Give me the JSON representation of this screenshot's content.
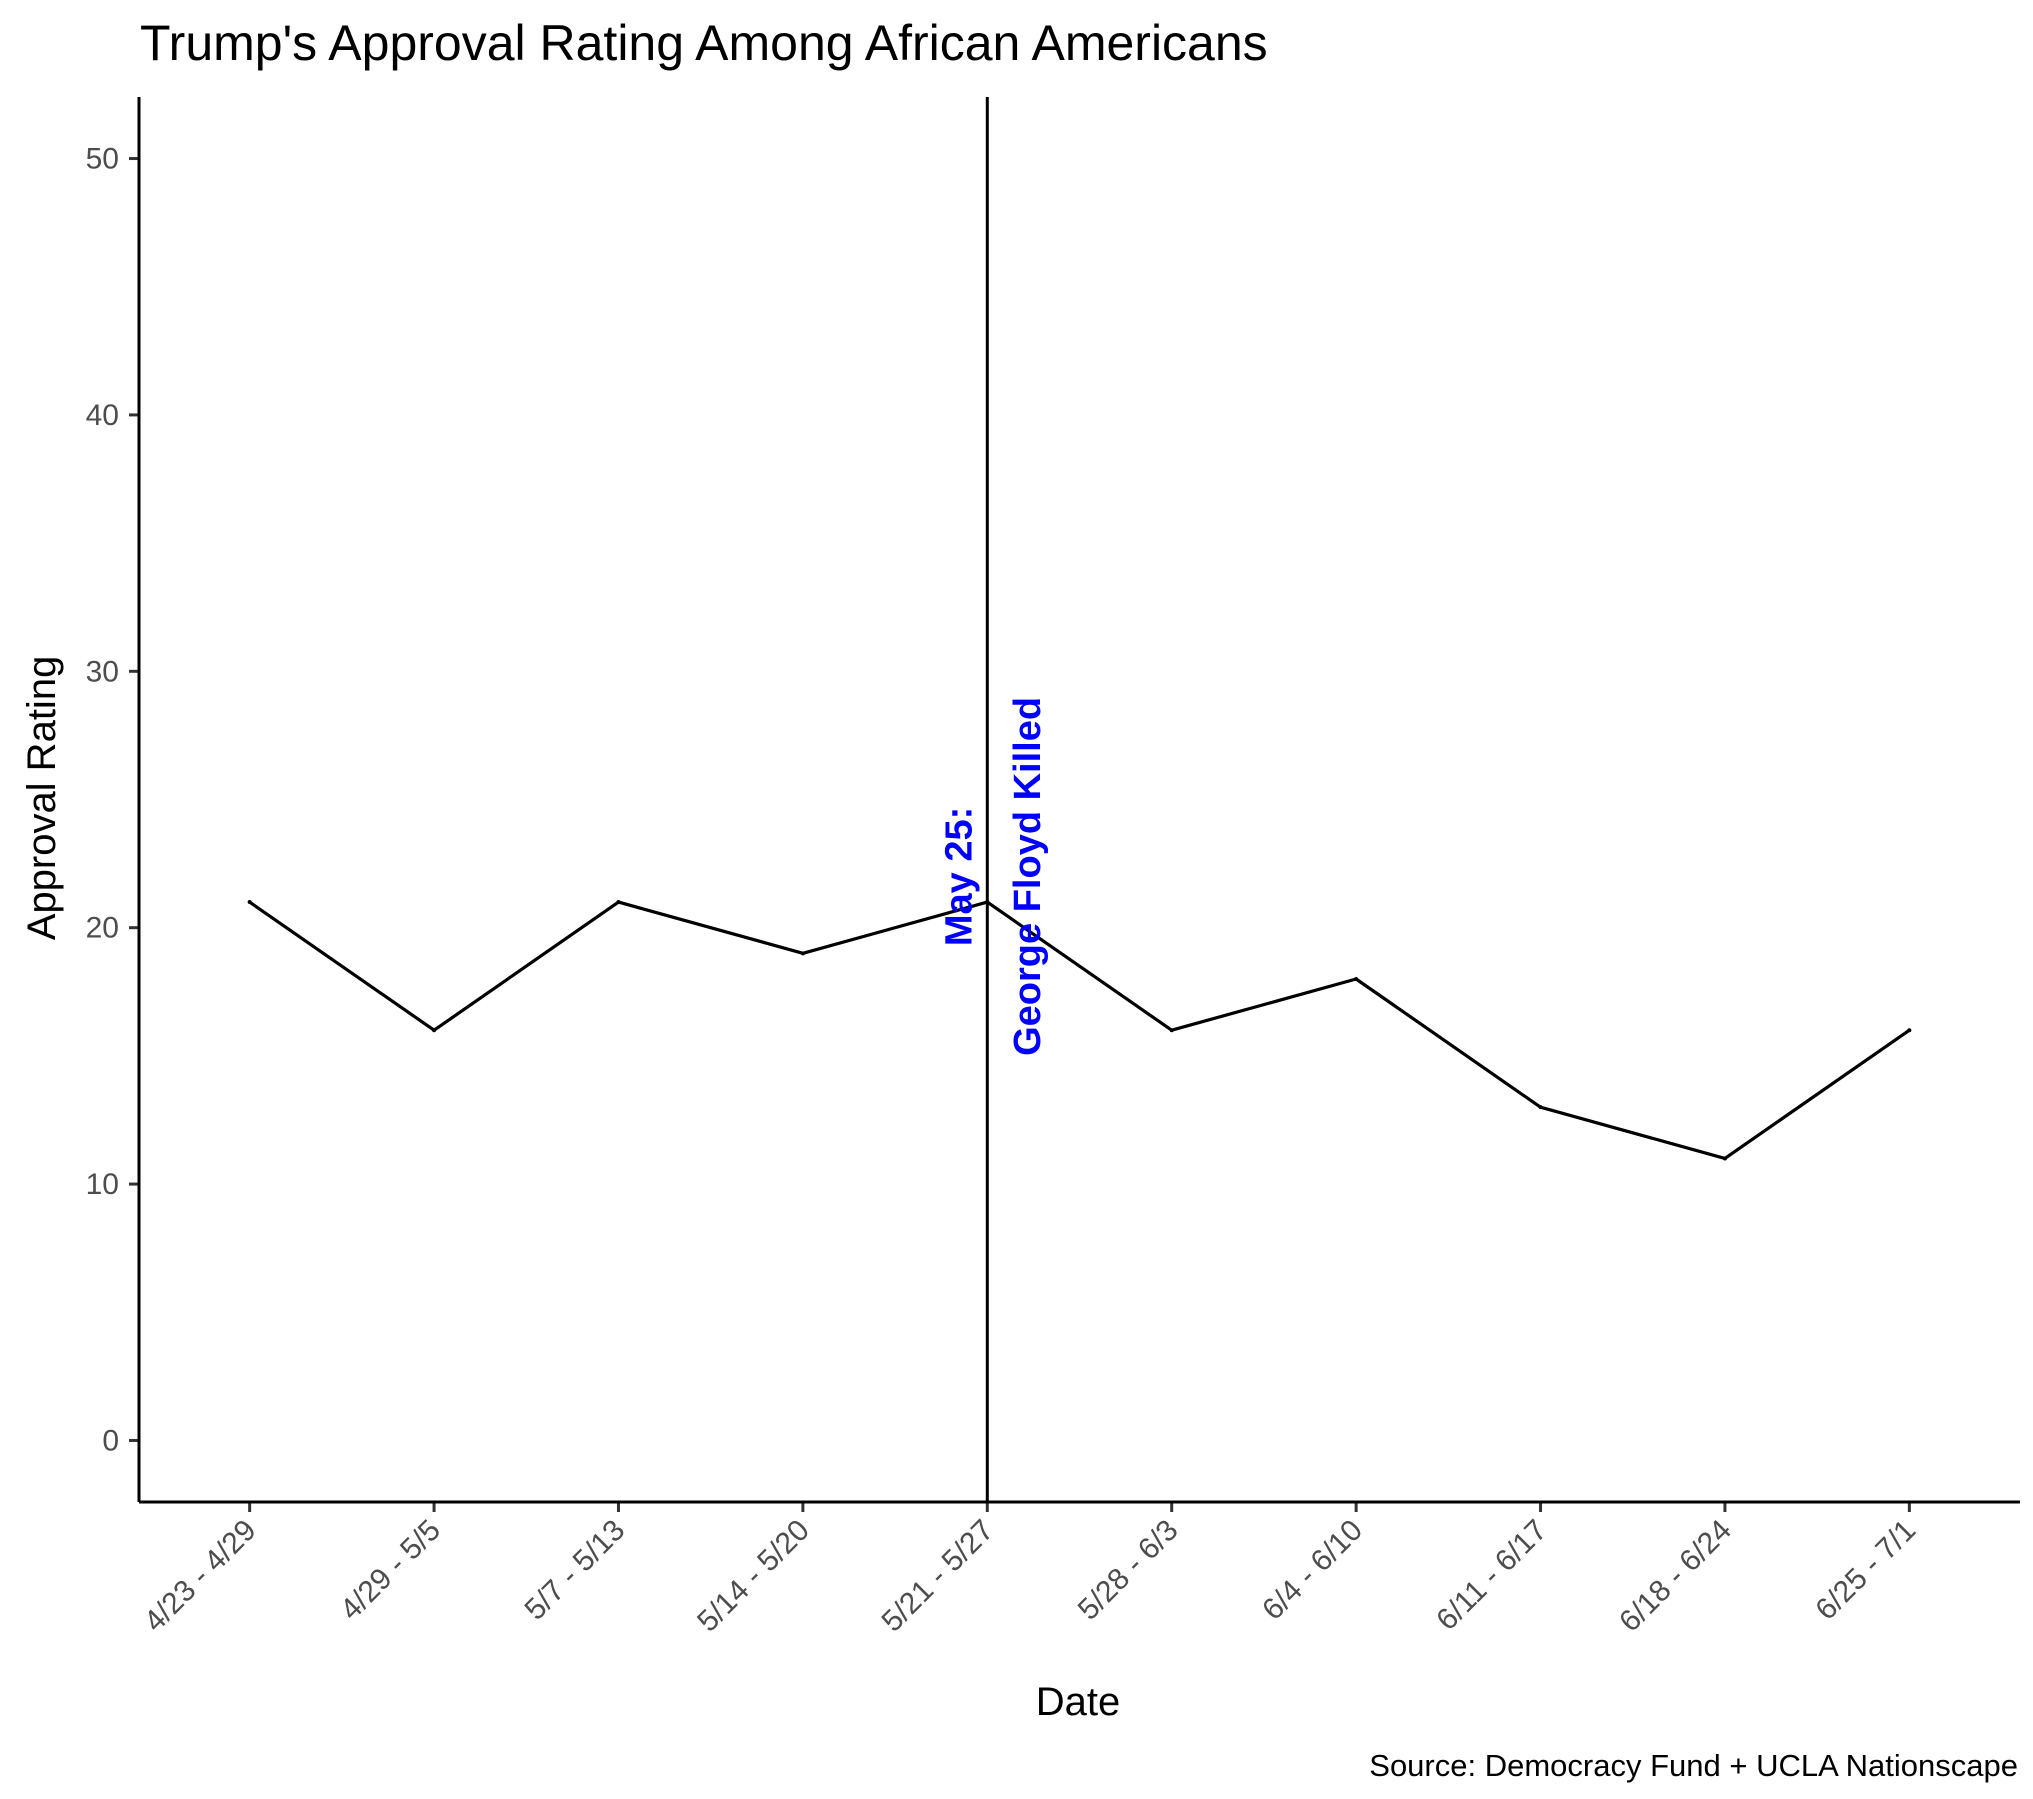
{
  "chart_data": {
    "type": "line",
    "title": "Trump's Approval Rating Among African Americans",
    "xlabel": "Date",
    "ylabel": "Approval Rating",
    "caption": "Source: Democracy Fund + UCLA Nationscape",
    "categories": [
      "4/23 - 4/29",
      "4/29 - 5/5",
      "5/7 - 5/13",
      "5/14 - 5/20",
      "5/21 - 5/27",
      "5/28 - 6/3",
      "6/4 - 6/10",
      "6/11 - 6/17",
      "6/18 - 6/24",
      "6/25 - 7/1"
    ],
    "series": [
      {
        "values": [
          21,
          16,
          21,
          19,
          21,
          16,
          18,
          13,
          11,
          16
        ]
      }
    ],
    "ylim": [
      -2.4,
      52.4
    ],
    "yticks": [
      0,
      10,
      20,
      30,
      40,
      50
    ],
    "grid": false,
    "line_color": "#000000",
    "annotation": {
      "category": "5/21 - 5/27",
      "lines": [
        "May 25:",
        "George Floyd Killed"
      ],
      "color": "#0000ff",
      "anchor_value": 22
    }
  }
}
